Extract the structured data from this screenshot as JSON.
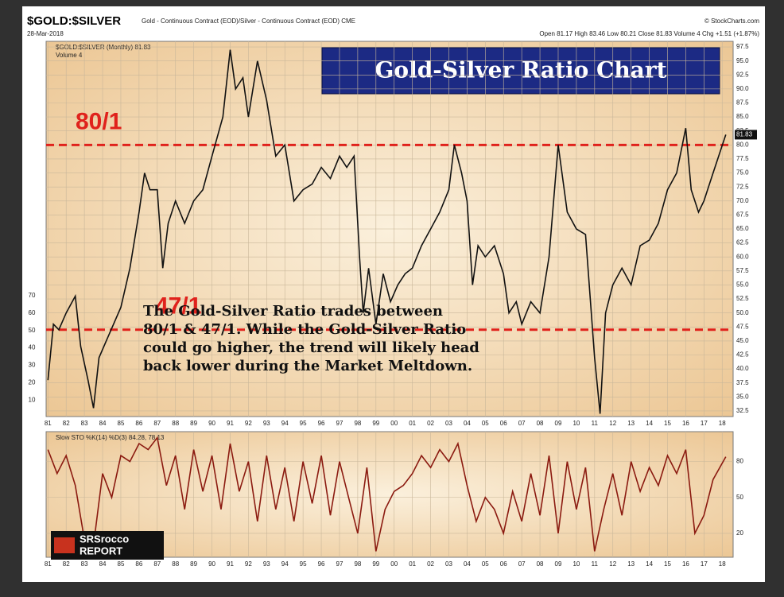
{
  "header": {
    "symbol": "$GOLD:$SILVER",
    "description": "Gold - Continuous Contract (EOD)/Silver - Continuous Contract (EOD) CME",
    "date": "28-Mar-2018",
    "source": "© StockCharts.com",
    "quote": "Open 81.17  High 83.46  Low 80.21  Close 81.83  Volume 4  Chg +1.51 (+1.87%)"
  },
  "logo": [
    "SRSrocco",
    "REPORT"
  ],
  "chart_data": [
    {
      "type": "line",
      "title": "Gold-Silver Ratio Chart",
      "legend": [
        "$GOLD:$SILVER (Monthly) 81.83",
        "Volume 4"
      ],
      "annotation": [
        "The Gold-Silver Ratio trades between",
        "80/1 & 47/1.  While the Gold-Silver Ratio",
        "could go higher, the trend will likely head",
        "back lower during the Market Meltdown."
      ],
      "reference_lines": [
        {
          "value": 80,
          "label": "80/1"
        },
        {
          "value": 47,
          "label": "47/1"
        }
      ],
      "reference_color": "#e0221c",
      "last_value": {
        "value": 81.83,
        "label": "81.83"
      },
      "x": [
        1981.0,
        1981.3,
        1981.6,
        1982.0,
        1982.5,
        1982.8,
        1983.2,
        1983.5,
        1983.8,
        1984.2,
        1984.6,
        1985.0,
        1985.5,
        1986.0,
        1986.3,
        1986.6,
        1987.0,
        1987.3,
        1987.6,
        1988.0,
        1988.5,
        1989.0,
        1989.5,
        1990.0,
        1990.6,
        1991.0,
        1991.3,
        1991.7,
        1992.0,
        1992.5,
        1993.0,
        1993.5,
        1994.0,
        1994.5,
        1995.0,
        1995.5,
        1996.0,
        1996.5,
        1997.0,
        1997.4,
        1997.8,
        1998.1,
        1998.3,
        1998.6,
        1999.0,
        1999.4,
        1999.8,
        2000.2,
        2000.6,
        2001.0,
        2001.5,
        2002.0,
        2002.5,
        2003.0,
        2003.3,
        2003.7,
        2004.0,
        2004.3,
        2004.6,
        2005.0,
        2005.5,
        2006.0,
        2006.3,
        2006.7,
        2007.0,
        2007.5,
        2008.0,
        2008.5,
        2009.0,
        2009.5,
        2010.0,
        2010.5,
        2011.0,
        2011.3,
        2011.6,
        2012.0,
        2012.5,
        2013.0,
        2013.5,
        2014.0,
        2014.5,
        2015.0,
        2015.5,
        2016.0,
        2016.3,
        2016.7,
        2017.0,
        2017.5,
        2018.2
      ],
      "series": [
        {
          "name": "$GOLD:$SILVER",
          "color": "#111111",
          "values": [
            38,
            48,
            47,
            50,
            53,
            44,
            38,
            33,
            42,
            45,
            48,
            51,
            58,
            68,
            75,
            72,
            72,
            58,
            66,
            70,
            66,
            70,
            72,
            78,
            85,
            97,
            90,
            92,
            85,
            95,
            88,
            78,
            80,
            70,
            72,
            73,
            76,
            74,
            78,
            76,
            78,
            60,
            50,
            58,
            48,
            57,
            52,
            55,
            57,
            58,
            62,
            65,
            68,
            72,
            80,
            75,
            70,
            55,
            62,
            60,
            62,
            57,
            50,
            52,
            48,
            52,
            50,
            60,
            80,
            68,
            65,
            64,
            42,
            32,
            50,
            55,
            58,
            55,
            62,
            63,
            66,
            72,
            75,
            83,
            72,
            68,
            70,
            75,
            81.83
          ]
        }
      ],
      "xlim": [
        1980.9,
        2018.6
      ],
      "xticks": [
        {
          "value": 1981,
          "label": "81"
        },
        {
          "value": 1982,
          "label": "82"
        },
        {
          "value": 1983,
          "label": "83"
        },
        {
          "value": 1984,
          "label": "84"
        },
        {
          "value": 1985,
          "label": "85"
        },
        {
          "value": 1986,
          "label": "86"
        },
        {
          "value": 1987,
          "label": "87"
        },
        {
          "value": 1988,
          "label": "88"
        },
        {
          "value": 1989,
          "label": "89"
        },
        {
          "value": 1990,
          "label": "90"
        },
        {
          "value": 1991,
          "label": "91"
        },
        {
          "value": 1992,
          "label": "92"
        },
        {
          "value": 1993,
          "label": "93"
        },
        {
          "value": 1994,
          "label": "94"
        },
        {
          "value": 1995,
          "label": "95"
        },
        {
          "value": 1996,
          "label": "96"
        },
        {
          "value": 1997,
          "label": "97"
        },
        {
          "value": 1998,
          "label": "98"
        },
        {
          "value": 1999,
          "label": "99"
        },
        {
          "value": 2000,
          "label": "00"
        },
        {
          "value": 2001,
          "label": "01"
        },
        {
          "value": 2002,
          "label": "02"
        },
        {
          "value": 2003,
          "label": "03"
        },
        {
          "value": 2004,
          "label": "04"
        },
        {
          "value": 2005,
          "label": "05"
        },
        {
          "value": 2006,
          "label": "06"
        },
        {
          "value": 2007,
          "label": "07"
        },
        {
          "value": 2008,
          "label": "08"
        },
        {
          "value": 2009,
          "label": "09"
        },
        {
          "value": 2010,
          "label": "10"
        },
        {
          "value": 2011,
          "label": "11"
        },
        {
          "value": 2012,
          "label": "12"
        },
        {
          "value": 2013,
          "label": "13"
        },
        {
          "value": 2014,
          "label": "14"
        },
        {
          "value": 2015,
          "label": "15"
        },
        {
          "value": 2016,
          "label": "16"
        },
        {
          "value": 2017,
          "label": "17"
        },
        {
          "value": 2018,
          "label": "18"
        }
      ],
      "ylim": [
        31.5,
        98.5
      ],
      "yticks": [
        32.5,
        {
          "value": 35,
          "label": "35.0"
        },
        37.5,
        {
          "value": 40,
          "label": "40.0"
        },
        42.5,
        {
          "value": 45,
          "label": "45.0"
        },
        47.5,
        {
          "value": 50,
          "label": "50.0"
        },
        52.5,
        {
          "value": 55,
          "label": "55.0"
        },
        57.5,
        {
          "value": 60,
          "label": "60.0"
        },
        62.5,
        {
          "value": 65,
          "label": "65.0"
        },
        67.5,
        {
          "value": 70,
          "label": "70.0"
        },
        72.5,
        {
          "value": 75,
          "label": "75.0"
        },
        77.5,
        {
          "value": 80,
          "label": "80.0"
        },
        82.5,
        {
          "value": 85,
          "label": "85.0"
        },
        87.5,
        {
          "value": 90,
          "label": "90.0"
        },
        92.5,
        {
          "value": 95,
          "label": "95.0"
        },
        97.5
      ],
      "y2lim": [
        0,
        70
      ],
      "y2ticks": [
        10,
        20,
        30,
        40,
        50,
        60,
        70
      ],
      "grid": true
    },
    {
      "type": "line",
      "title": "Slow STO %K(14) %D(3) 84.28, 78.13",
      "x": [
        1981,
        1981.5,
        1982,
        1982.5,
        1983,
        1983.5,
        1984,
        1984.5,
        1985,
        1985.5,
        1986,
        1986.5,
        1987,
        1987.5,
        1988,
        1988.5,
        1989,
        1989.5,
        1990,
        1990.5,
        1991,
        1991.5,
        1992,
        1992.5,
        1993,
        1993.5,
        1994,
        1994.5,
        1995,
        1995.5,
        1996,
        1996.5,
        1997,
        1997.5,
        1998,
        1998.5,
        1999,
        1999.5,
        2000,
        2000.5,
        2001,
        2001.5,
        2002,
        2002.5,
        2003,
        2003.5,
        2004,
        2004.5,
        2005,
        2005.5,
        2006,
        2006.5,
        2007,
        2007.5,
        2008,
        2008.5,
        2009,
        2009.5,
        2010,
        2010.5,
        2011,
        2011.5,
        2012,
        2012.5,
        2013,
        2013.5,
        2014,
        2014.5,
        2015,
        2015.5,
        2016,
        2016.5,
        2017,
        2017.5,
        2018.2
      ],
      "series": [
        {
          "name": "%K",
          "color": "#8b1a10",
          "values": [
            90,
            70,
            85,
            60,
            15,
            10,
            70,
            50,
            85,
            80,
            95,
            90,
            100,
            60,
            85,
            40,
            90,
            55,
            85,
            40,
            95,
            55,
            80,
            30,
            85,
            40,
            75,
            30,
            80,
            45,
            85,
            35,
            80,
            50,
            20,
            75,
            5,
            40,
            55,
            60,
            70,
            85,
            75,
            90,
            80,
            95,
            60,
            30,
            50,
            40,
            20,
            55,
            30,
            70,
            35,
            85,
            20,
            80,
            40,
            75,
            5,
            40,
            70,
            35,
            80,
            55,
            75,
            60,
            85,
            70,
            90,
            20,
            35,
            65,
            84
          ]
        }
      ],
      "xlim": [
        1980.9,
        2018.6
      ],
      "ylim": [
        0,
        105
      ],
      "yticks": [
        20,
        50,
        80
      ],
      "grid": true
    }
  ]
}
